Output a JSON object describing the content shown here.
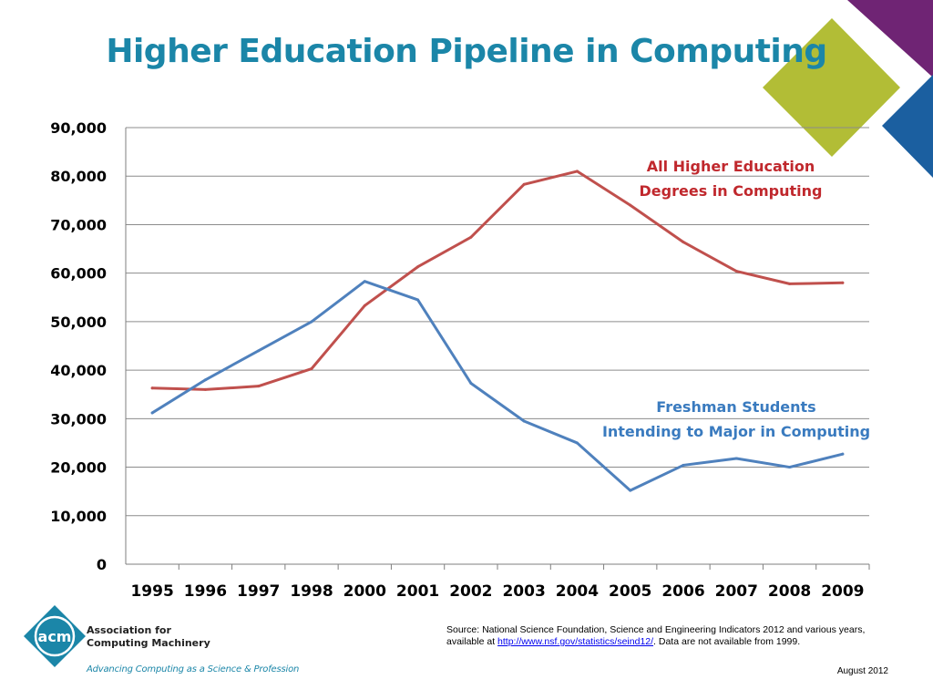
{
  "slide": {
    "title": "Higher Education Pipeline in Computing",
    "org_name": "Association for\nComputing Machinery",
    "logo_text": "acm",
    "tagline": "Advancing Computing as a Science & Profession",
    "source_prefix": "Source: National Science Foundation, Science and Engineering Indicators 2012 and various years, available at ",
    "source_link": "http://www.nsf.gov/statistics/seind12/",
    "source_suffix": ". Data are not available from 1999.",
    "date": "August 2012",
    "colors": {
      "title": "#1b86a8",
      "decor_purple": "#6f2474",
      "decor_green": "#b2bd36",
      "decor_blue": "#1b5fa0",
      "logo": "#1b86a8"
    }
  },
  "chart_data": {
    "type": "line",
    "title": "",
    "xlabel": "",
    "ylabel": "",
    "categories": [
      "1995",
      "1996",
      "1997",
      "1998",
      "2000",
      "2001",
      "2002",
      "2003",
      "2004",
      "2005",
      "2006",
      "2007",
      "2008",
      "2009"
    ],
    "ylim": [
      0,
      90000
    ],
    "y_ticks": [
      0,
      10000,
      20000,
      30000,
      40000,
      50000,
      60000,
      70000,
      80000,
      90000
    ],
    "y_tick_labels": [
      "0",
      "10,000",
      "20,000",
      "30,000",
      "40,000",
      "50,000",
      "60,000",
      "70,000",
      "80,000",
      "90,000"
    ],
    "grid": true,
    "series": [
      {
        "name": "All Higher Education Degrees in Computing",
        "label_lines": [
          "All Higher Education",
          "Degrees in Computing"
        ],
        "color": "#c0504d",
        "values": [
          36300,
          36000,
          36700,
          40300,
          53300,
          61300,
          67400,
          78300,
          81000,
          74000,
          66400,
          60400,
          57800,
          58000
        ]
      },
      {
        "name": "Freshman Students Intending to Major in Computing",
        "label_lines": [
          "Freshman Students",
          "Intending to Major in Computing"
        ],
        "color": "#4f81bd",
        "values": [
          31200,
          38000,
          44000,
          50000,
          58300,
          54500,
          37300,
          29500,
          25000,
          15200,
          20400,
          21800,
          20000,
          22700
        ]
      }
    ]
  }
}
